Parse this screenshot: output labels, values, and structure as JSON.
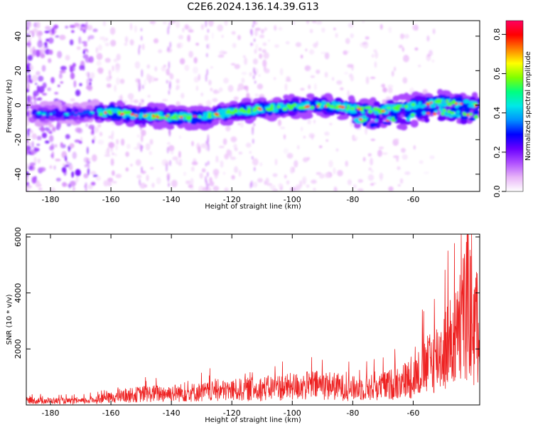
{
  "title": "C2E6.2024.136.14.39.G13",
  "chart_data": [
    {
      "type": "heatmap",
      "name": "spectrogram",
      "xlabel": "Height of straight line (km)",
      "ylabel": "Frequency (Hz)",
      "xlim": [
        -188,
        -38
      ],
      "ylim": [
        -50,
        49
      ],
      "xticks": [
        -180,
        -160,
        -140,
        -120,
        -100,
        -80,
        -60
      ],
      "xtick_labels": [
        "-180",
        "-160",
        "-140",
        "-120",
        "-100",
        "-80",
        "-60"
      ],
      "yticks": [
        -40,
        -20,
        0,
        20,
        40
      ],
      "ytick_labels": [
        "-40",
        "-20",
        "0",
        "20",
        "40"
      ],
      "colorbar": {
        "label": "Normalized spectral amplitude",
        "range": [
          0,
          0.87
        ],
        "ticks": [
          0.0,
          0.2,
          0.4,
          0.6,
          0.8
        ],
        "tick_labels": [
          "0.0",
          "0.2",
          "0.4",
          "0.6",
          "0.8"
        ],
        "colors": [
          "#ffffff",
          "#e8b4f8",
          "#b050ff",
          "#6a00ff",
          "#0000ff",
          "#0090ff",
          "#00e8e8",
          "#00ff80",
          "#80ff00",
          "#ffff00",
          "#ff8000",
          "#ff0000",
          "#ff0060"
        ]
      },
      "ridge": {
        "description_points_x": [
          -186,
          -170,
          -160,
          -150,
          -140,
          -130,
          -120,
          -110,
          -100,
          -90,
          -80,
          -70,
          -60,
          -50,
          -40
        ],
        "description_points_y": [
          -5,
          -5,
          -4,
          -6,
          -7,
          -7,
          -4,
          -2,
          -1,
          0,
          -2,
          -3,
          0,
          2,
          0
        ],
        "peak_amplitude": 0.85
      }
    },
    {
      "type": "line",
      "name": "snr",
      "xlabel": "Height of straight line (km)",
      "ylabel": "SNR (10 * v/v)",
      "xlim": [
        -188,
        -38
      ],
      "ylim": [
        0,
        6100
      ],
      "xticks": [
        -180,
        -160,
        -140,
        -120,
        -100,
        -80,
        -60
      ],
      "xtick_labels": [
        "-180",
        "-160",
        "-140",
        "-120",
        "-100",
        "-80",
        "-60"
      ],
      "yticks": [
        2000,
        4000,
        6000
      ],
      "ytick_labels": [
        "2000",
        "4000",
        "6000"
      ],
      "line_color": "#ee2222",
      "envelope_x": [
        -188,
        -170,
        -160,
        -150,
        -140,
        -130,
        -120,
        -110,
        -100,
        -90,
        -80,
        -70,
        -60,
        -55,
        -50,
        -45,
        -42,
        -40,
        -38
      ],
      "envelope_y": [
        250,
        200,
        400,
        600,
        650,
        700,
        800,
        900,
        1000,
        1100,
        900,
        1000,
        1500,
        2200,
        3000,
        3800,
        5800,
        4000,
        4500
      ]
    }
  ]
}
